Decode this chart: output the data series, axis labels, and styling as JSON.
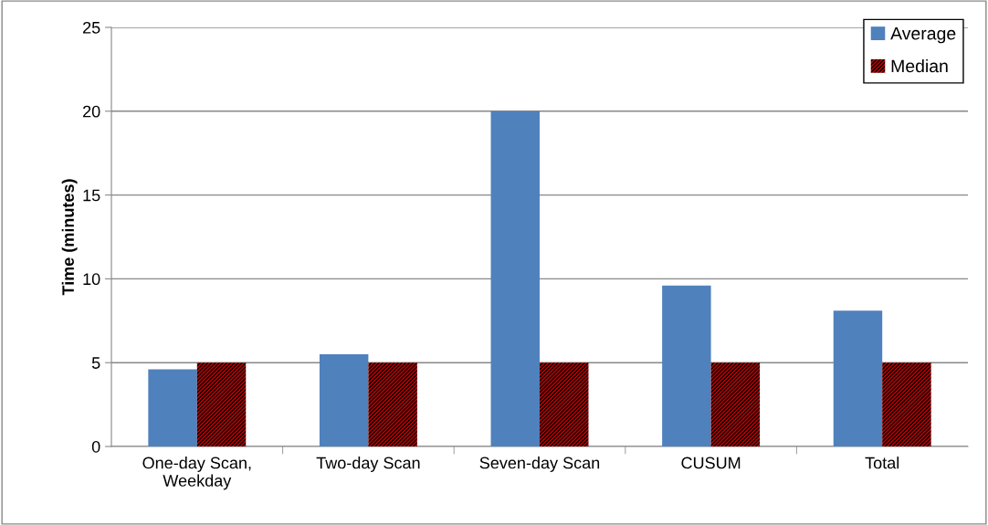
{
  "chart_data": {
    "type": "bar",
    "ylabel": "Time (minutes)",
    "categories": [
      "One-day Scan,\nWeekday",
      "Two-day Scan",
      "Seven-day Scan",
      "CUSUM",
      "Total"
    ],
    "series": [
      {
        "name": "Average",
        "color": "#4f81bd",
        "values": [
          4.6,
          5.5,
          20.0,
          9.6,
          8.1
        ]
      },
      {
        "name": "Median",
        "color": "#c00000",
        "values": [
          5.0,
          5.0,
          5.0,
          5.0,
          5.0
        ]
      }
    ],
    "ylim": [
      0,
      25
    ],
    "yticks": [
      0,
      5,
      10,
      15,
      20,
      25
    ],
    "grid": "y",
    "legend": "top right"
  }
}
